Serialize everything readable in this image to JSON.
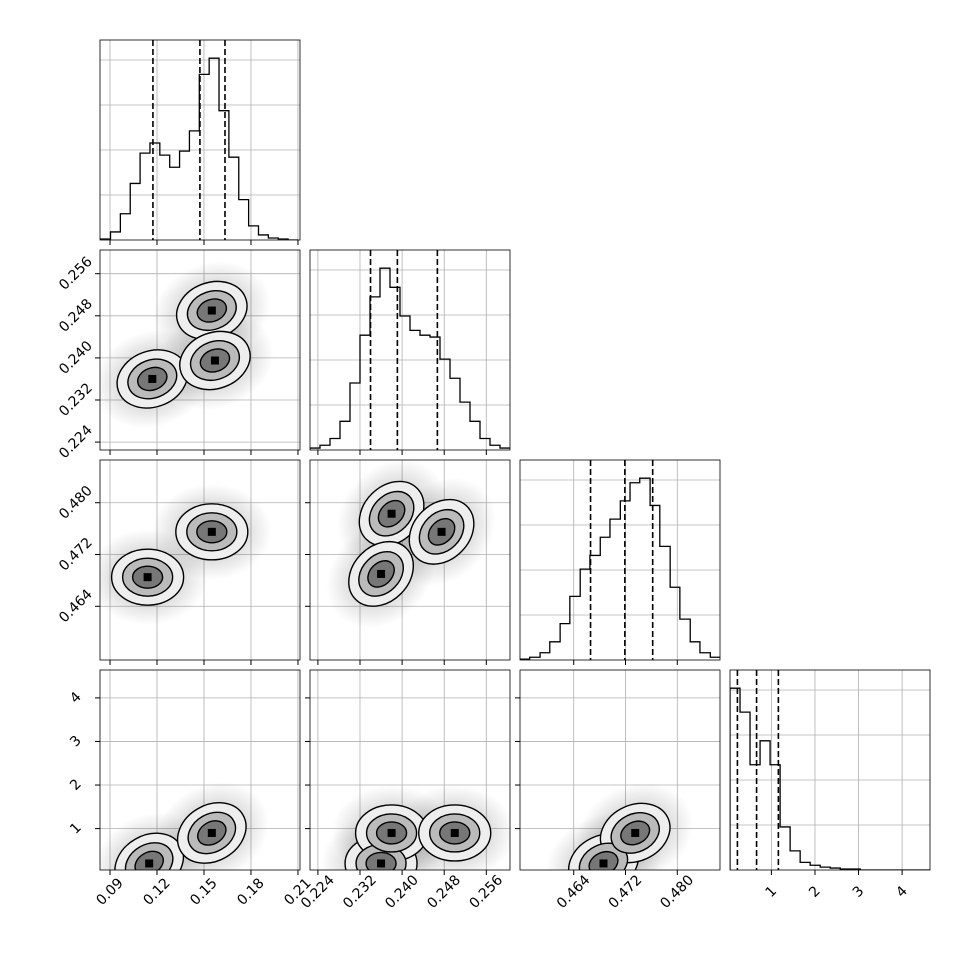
{
  "chart_data": {
    "type": "corner",
    "axes": [
      {
        "lim": [
          0.0836,
          0.2113
        ],
        "ticks": [
          0.09,
          0.12,
          0.15,
          0.18,
          0.21
        ]
      },
      {
        "lim": [
          0.2225,
          0.2605
        ],
        "ticks": [
          0.224,
          0.232,
          {
            "value": 0.24,
            "label": "0.240"
          },
          0.248,
          0.256
        ]
      },
      {
        "lim": [
          0.4557,
          0.4866
        ],
        "ticks": [
          0.464,
          0.472,
          {
            "value": 0.48,
            "label": "0.480"
          }
        ]
      },
      {
        "lim": [
          0.05,
          4.64
        ],
        "ticks": [
          1,
          2,
          3,
          4
        ]
      }
    ],
    "hists": [
      {
        "bins": [
          0.084,
          0.0903,
          0.0966,
          0.1029,
          0.1092,
          0.1155,
          0.1218,
          0.1281,
          0.1344,
          0.1407,
          0.147,
          0.1533,
          0.1596,
          0.1659,
          0.1722,
          0.1785,
          0.1848,
          0.1911,
          0.1974,
          0.2037,
          0.21
        ],
        "counts": [
          1,
          8,
          26,
          56,
          86,
          96,
          84,
          72,
          88,
          108,
          164,
          180,
          128,
          82,
          40,
          14,
          5,
          2,
          1,
          0
        ],
        "quantiles": [
          0.1174,
          0.1474,
          0.1634
        ]
      },
      {
        "bins": [
          0.2225,
          0.2244,
          0.2263,
          0.2282,
          0.2301,
          0.232,
          0.2339,
          0.2358,
          0.2377,
          0.2396,
          0.2415,
          0.2434,
          0.2453,
          0.2472,
          0.2491,
          0.251,
          0.2529,
          0.2548,
          0.2567,
          0.2586,
          0.2605
        ],
        "counts": [
          2,
          5,
          12,
          30,
          70,
          120,
          160,
          190,
          170,
          140,
          125,
          120,
          118,
          95,
          75,
          50,
          30,
          12,
          5,
          2
        ],
        "quantiles": [
          0.234,
          0.2391,
          0.2467
        ]
      },
      {
        "bins": [
          0.4557,
          0.4572,
          0.4588,
          0.4603,
          0.4619,
          0.4634,
          0.465,
          0.4665,
          0.4681,
          0.4696,
          0.4712,
          0.4727,
          0.4742,
          0.4758,
          0.4773,
          0.4789,
          0.4804,
          0.482,
          0.4835,
          0.4851,
          0.4866
        ],
        "counts": [
          1,
          3,
          8,
          20,
          40,
          70,
          100,
          115,
          135,
          155,
          175,
          195,
          200,
          170,
          125,
          80,
          45,
          20,
          8,
          3
        ],
        "quantiles": [
          0.4666,
          0.4719,
          0.4762
        ]
      },
      {
        "bins": [
          0.05,
          0.28,
          0.51,
          0.74,
          0.97,
          1.2,
          1.43,
          1.66,
          1.89,
          2.12,
          2.35,
          2.58,
          2.81,
          3.04,
          3.27,
          3.5,
          3.73,
          3.96,
          4.19,
          4.42,
          4.64
        ],
        "counts": [
          190,
          165,
          110,
          135,
          110,
          45,
          20,
          8,
          5,
          3,
          2,
          1,
          1,
          0,
          0,
          0,
          0,
          0,
          0,
          0
        ],
        "quantiles": [
          0.22,
          0.66,
          1.16
        ]
      }
    ],
    "pairs": [
      {
        "peaks": [
          [
            0.155,
            0.249
          ],
          [
            0.117,
            0.236
          ],
          [
            0.157,
            0.2395
          ]
        ]
      },
      {
        "peaks": [
          [
            0.155,
            0.4755
          ],
          [
            0.114,
            0.4685
          ]
        ]
      },
      {
        "peaks": [
          [
            0.238,
            0.4783
          ],
          [
            0.2475,
            0.4755
          ],
          [
            0.236,
            0.469
          ]
        ]
      },
      {
        "peaks": [
          [
            0.115,
            0.2
          ],
          [
            0.155,
            0.9
          ]
        ]
      },
      {
        "peaks": [
          [
            0.236,
            0.2
          ],
          [
            0.238,
            0.9
          ],
          [
            0.25,
            0.9
          ]
        ]
      },
      {
        "peaks": [
          [
            0.4686,
            0.2
          ],
          [
            0.4735,
            0.9
          ]
        ]
      }
    ]
  }
}
